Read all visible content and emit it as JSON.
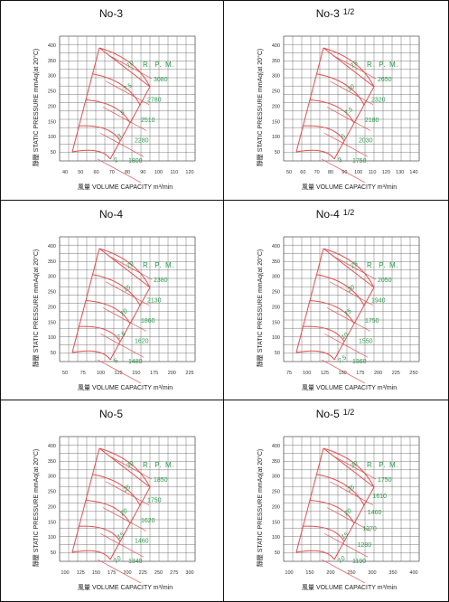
{
  "panels": [
    {
      "id": "no3",
      "title": "No-3",
      "title_suffix": "",
      "xlabel": "風量 VOLUME CAPACITY",
      "xunit": "m³/min",
      "ylabel": "靜壓 STATIC PRESSURE mmAq(at 20°C)",
      "rpm_label": "R. P. M.",
      "xticks": [
        "40",
        "50",
        "60",
        "70",
        "80",
        "90",
        "100",
        "110",
        "120"
      ],
      "yticks": [
        "50",
        "100",
        "150",
        "200",
        "250",
        "300",
        "350",
        "400"
      ],
      "rpm_values": [
        "3080",
        "2780",
        "2510",
        "2280",
        "1800"
      ],
      "kw_values": [
        "10",
        "7.5",
        "5",
        "3",
        "2"
      ]
    },
    {
      "id": "no3h",
      "title": "No-3",
      "title_suffix": "1/2",
      "xlabel": "風量 VOLUME CAPACITY",
      "xunit": "m³/min",
      "ylabel": "靜壓 STATIC PRESSURE mmAq(at 20°C)",
      "rpm_label": "R. P. M.",
      "xticks": [
        "50",
        "60",
        "70",
        "80",
        "90",
        "100",
        "110",
        "120",
        "130",
        "140"
      ],
      "yticks": [
        "50",
        "100",
        "150",
        "200",
        "250",
        "300",
        "350",
        "400"
      ],
      "rpm_values": [
        "2650",
        "2320",
        "2180",
        "2030",
        "1750"
      ],
      "kw_values": [
        "15",
        "10",
        "7.5",
        "5",
        "3"
      ]
    },
    {
      "id": "no4",
      "title": "No-4",
      "title_suffix": "",
      "xlabel": "風量 VOLUME CAPACITY",
      "xunit": "m³/min",
      "ylabel": "靜壓 STATIC PRESSURE mmAq(at 20°C)",
      "rpm_label": "R. P. M.",
      "xticks": [
        "50",
        "75",
        "100",
        "125",
        "150",
        "175",
        "200",
        "225"
      ],
      "yticks": [
        "50",
        "100",
        "150",
        "200",
        "250",
        "300",
        "350",
        "400"
      ],
      "rpm_values": [
        "2380",
        "2130",
        "1860",
        "1620",
        "1480"
      ],
      "kw_values": [
        "20",
        "15",
        "10",
        "7.5",
        "5"
      ]
    },
    {
      "id": "no4h",
      "title": "No-4",
      "title_suffix": "1/2",
      "xlabel": "風量 VOLUME CAPACITY",
      "xunit": "m³/min",
      "ylabel": "靜壓 STATIC PRESSURE mmAq(at 20°C)",
      "rpm_label": "R. P. M.",
      "xticks": [
        "75",
        "100",
        "125",
        "150",
        "175",
        "200",
        "225",
        "250"
      ],
      "yticks": [
        "50",
        "100",
        "150",
        "200",
        "250",
        "300",
        "350",
        "400"
      ],
      "rpm_values": [
        "2050",
        "1940",
        "1750",
        "1550",
        "1360"
      ],
      "kw_values": [
        "25",
        "20",
        "15",
        "10",
        "7.5"
      ]
    },
    {
      "id": "no5",
      "title": "No-5",
      "title_suffix": "",
      "xlabel": "風量 VOLUME CAPACITY",
      "xunit": "m³/min",
      "ylabel": "靜壓 STATIC PRESSURE mmAq(at 20°C)",
      "rpm_label": "R. P. M.",
      "xticks": [
        "100",
        "125",
        "150",
        "175",
        "200",
        "225",
        "250",
        "275",
        "300"
      ],
      "yticks": [
        "50",
        "100",
        "150",
        "200",
        "250",
        "300",
        "350",
        "400"
      ],
      "rpm_values": [
        "1850",
        "1750",
        "1620",
        "1460",
        "1340"
      ],
      "kw_values": [
        "30",
        "25",
        "20",
        "15",
        "10"
      ]
    },
    {
      "id": "no5h",
      "title": "No-5",
      "title_suffix": "1/2",
      "xlabel": "風量 VOLUME CAPACITY",
      "xunit": "m³/min",
      "ylabel": "靜壓 STATIC PRESSURE mmAq(at 20°C)",
      "rpm_label": "R. P. M.",
      "xticks": [
        "100",
        "150",
        "200",
        "250",
        "300",
        "350",
        "400"
      ],
      "yticks": [
        "50",
        "100",
        "150",
        "200",
        "250",
        "300",
        "350",
        "400"
      ],
      "rpm_values": [
        "1750",
        "1610",
        "1460",
        "1370",
        "1280",
        "1190"
      ],
      "kw_values": [
        "30",
        "25",
        "20",
        "15",
        "10"
      ]
    }
  ],
  "colors": {
    "curve": "#e05050",
    "label": "#2a9a4a",
    "grid": "#555555"
  }
}
